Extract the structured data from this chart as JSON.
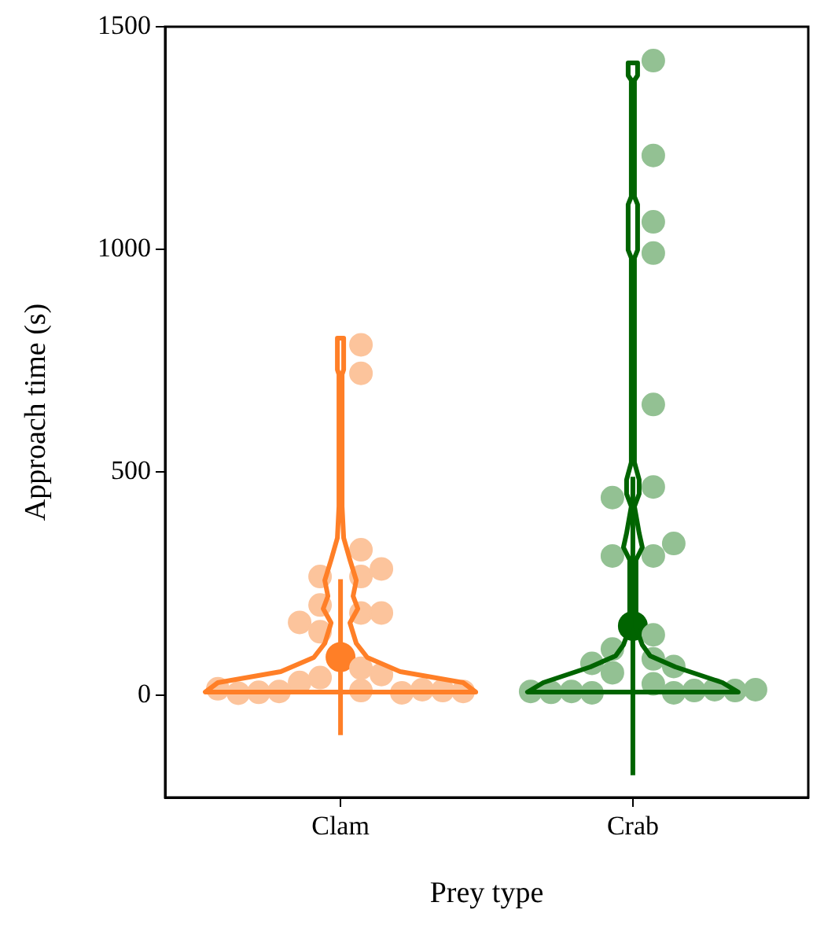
{
  "chart_data": {
    "type": "scatter",
    "xlabel": "Prey type",
    "ylabel": "Approach time (s)",
    "categories": [
      "Clam",
      "Crab"
    ],
    "ylim": [
      -230,
      1500
    ],
    "yticks": [
      0,
      500,
      1000,
      1500
    ],
    "grid": false,
    "legend": false,
    "marker": "circle",
    "series": [
      {
        "color": "#fcc49c",
        "x": [
          "Clam",
          "Clam",
          "Clam",
          "Clam",
          "Clam",
          "Clam",
          "Clam",
          "Clam",
          "Clam",
          "Clam",
          "Clam",
          "Clam",
          "Clam",
          "Clam",
          "Clam",
          "Clam",
          "Clam",
          "Clam",
          "Clam",
          "Clam",
          "Clam",
          "Clam",
          "Clam",
          "Clam"
        ],
        "values": [
          786,
          722,
          326,
          266,
          266,
          283,
          184,
          202,
          184,
          163,
          142,
          60,
          39,
          46,
          28,
          10,
          5,
          8,
          12,
          6,
          10,
          4,
          8,
          14
        ]
      },
      {
        "color": "#93c193",
        "x": [
          "Crab",
          "Crab",
          "Crab",
          "Crab",
          "Crab",
          "Crab",
          "Crab",
          "Crab",
          "Crab",
          "Crab",
          "Crab",
          "Crab",
          "Crab",
          "Crab",
          "Crab",
          "Crab",
          "Crab",
          "Crab",
          "Crab",
          "Crab",
          "Crab",
          "Crab",
          "Crab",
          "Crab",
          "Crab",
          "Crab"
        ],
        "values": [
          1424,
          1211,
          992,
          1062,
          652,
          467,
          443,
          312,
          312,
          135,
          103,
          81,
          64,
          71,
          50,
          25,
          5,
          5,
          340,
          10,
          8,
          12,
          6,
          10,
          8,
          12
        ]
      },
      {
        "colors": [
          "#ff7f27",
          "#006400"
        ],
        "x": [
          "Clam",
          "Crab"
        ],
        "values": [
          85,
          155
        ],
        "errors": [
          [
            -90,
            260
          ],
          [
            -180,
            490
          ]
        ]
      }
    ]
  }
}
